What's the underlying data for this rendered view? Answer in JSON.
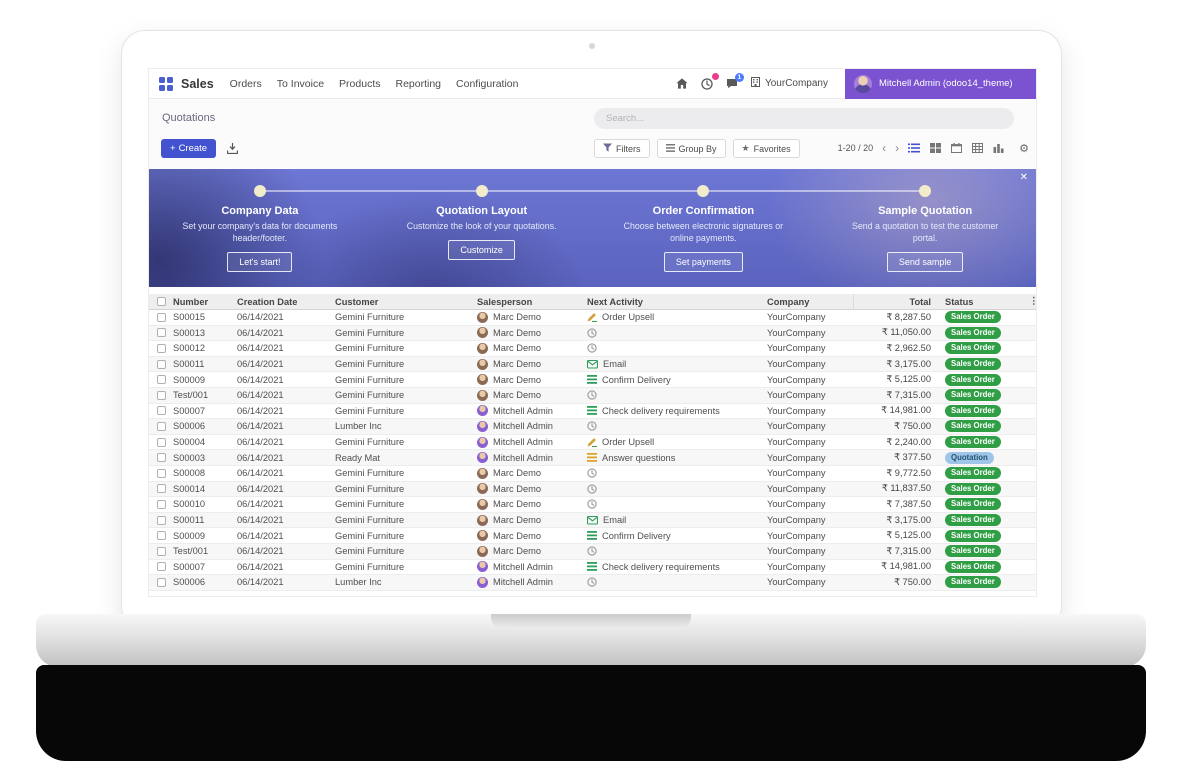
{
  "colors": {
    "accent": "#4353cf",
    "apps_icon": "#4a5fd0",
    "user_block_bg": "#7b52d0",
    "banner_top": "#6d77d4",
    "banner_bottom": "#5a63bd",
    "dot": "#f2ecca",
    "status_sales_order_bg": "#2f9e44",
    "status_sales_order_text": "#ffffff",
    "status_quotation_bg": "#9fc5e8",
    "status_quotation_text": "#23536f",
    "message_badge_bg": "#4d7cfe",
    "activity_badge_bg": "#e83e8c"
  },
  "icons": {
    "close": "✕",
    "star": "★",
    "plus": "+",
    "pager_prev": "‹",
    "pager_next": "›",
    "dots_vertical": "⋮",
    "gear": "⚙"
  },
  "navbar": {
    "app_name": "Sales",
    "menu": [
      "Orders",
      "To Invoice",
      "Products",
      "Reporting",
      "Configuration"
    ],
    "company": "YourCompany",
    "user": "Mitchell Admin (odoo14_theme)",
    "message_badge": "1"
  },
  "control_panel": {
    "breadcrumb": "Quotations",
    "search_placeholder": "Search...",
    "create_label": "Create",
    "filters_label": "Filters",
    "group_by_label": "Group By",
    "favorites_label": "Favorites",
    "pager": "1-20 / 20"
  },
  "onboarding": {
    "steps": [
      {
        "title": "Company Data",
        "description": "Set your company's data for documents header/footer.",
        "button": "Let's start!"
      },
      {
        "title": "Quotation Layout",
        "description": "Customize the look of your quotations.",
        "button": "Customize"
      },
      {
        "title": "Order Confirmation",
        "description": "Choose between electronic signatures or online payments.",
        "button": "Set payments"
      },
      {
        "title": "Sample Quotation",
        "description": "Send a quotation to test the customer portal.",
        "button": "Send sample"
      }
    ]
  },
  "table": {
    "columns": [
      "Number",
      "Creation Date",
      "Customer",
      "Salesperson",
      "Next Activity",
      "Company",
      "Total",
      "Status"
    ],
    "salesperson_colors": {
      "Marc Demo": "#8a6a55",
      "Mitchell Admin": "#8a5fd0"
    },
    "rows": [
      {
        "number": "S00015",
        "date": "06/14/2021",
        "customer": "Gemini Furniture",
        "salesperson": "Marc Demo",
        "activity_icon": "upsell",
        "activity": "Order Upsell",
        "company": "YourCompany",
        "total": "₹ 8,287.50",
        "status": "Sales Order"
      },
      {
        "number": "S00013",
        "date": "06/14/2021",
        "customer": "Gemini Furniture",
        "salesperson": "Marc Demo",
        "activity_icon": "clock",
        "activity": "",
        "company": "YourCompany",
        "total": "₹ 11,050.00",
        "status": "Sales Order"
      },
      {
        "number": "S00012",
        "date": "06/14/2021",
        "customer": "Gemini Furniture",
        "salesperson": "Marc Demo",
        "activity_icon": "clock",
        "activity": "",
        "company": "YourCompany",
        "total": "₹ 2,962.50",
        "status": "Sales Order"
      },
      {
        "number": "S00011",
        "date": "06/14/2021",
        "customer": "Gemini Furniture",
        "salesperson": "Marc Demo",
        "activity_icon": "email",
        "activity": "Email",
        "company": "YourCompany",
        "total": "₹ 3,175.00",
        "status": "Sales Order"
      },
      {
        "number": "S00009",
        "date": "06/14/2021",
        "customer": "Gemini Furniture",
        "salesperson": "Marc Demo",
        "activity_icon": "tasks",
        "activity": "Confirm Delivery",
        "company": "YourCompany",
        "total": "₹ 5,125.00",
        "status": "Sales Order"
      },
      {
        "number": "Test/001",
        "date": "06/14/2021",
        "customer": "Gemini Furniture",
        "salesperson": "Marc Demo",
        "activity_icon": "clock",
        "activity": "",
        "company": "YourCompany",
        "total": "₹ 7,315.00",
        "status": "Sales Order"
      },
      {
        "number": "S00007",
        "date": "06/14/2021",
        "customer": "Gemini Furniture",
        "salesperson": "Mitchell Admin",
        "activity_icon": "tasks",
        "activity": "Check delivery requirements",
        "company": "YourCompany",
        "total": "₹ 14,981.00",
        "status": "Sales Order"
      },
      {
        "number": "S00006",
        "date": "06/14/2021",
        "customer": "Lumber Inc",
        "salesperson": "Mitchell Admin",
        "activity_icon": "clock",
        "activity": "",
        "company": "YourCompany",
        "total": "₹ 750.00",
        "status": "Sales Order"
      },
      {
        "number": "S00004",
        "date": "06/14/2021",
        "customer": "Gemini Furniture",
        "salesperson": "Mitchell Admin",
        "activity_icon": "upsell",
        "activity": "Order Upsell",
        "company": "YourCompany",
        "total": "₹ 2,240.00",
        "status": "Sales Order"
      },
      {
        "number": "S00003",
        "date": "06/14/2021",
        "customer": "Ready Mat",
        "salesperson": "Mitchell Admin",
        "activity_icon": "tasks_orange",
        "activity": "Answer questions",
        "company": "YourCompany",
        "total": "₹ 377.50",
        "status": "Quotation"
      },
      {
        "number": "S00008",
        "date": "06/14/2021",
        "customer": "Gemini Furniture",
        "salesperson": "Marc Demo",
        "activity_icon": "clock",
        "activity": "",
        "company": "YourCompany",
        "total": "₹ 9,772.50",
        "status": "Sales Order"
      },
      {
        "number": "S00014",
        "date": "06/14/2021",
        "customer": "Gemini Furniture",
        "salesperson": "Marc Demo",
        "activity_icon": "clock",
        "activity": "",
        "company": "YourCompany",
        "total": "₹ 11,837.50",
        "status": "Sales Order"
      },
      {
        "number": "S00010",
        "date": "06/14/2021",
        "customer": "Gemini Furniture",
        "salesperson": "Marc Demo",
        "activity_icon": "clock",
        "activity": "",
        "company": "YourCompany",
        "total": "₹ 7,387.50",
        "status": "Sales Order"
      },
      {
        "number": "S00011",
        "date": "06/14/2021",
        "customer": "Gemini Furniture",
        "salesperson": "Marc Demo",
        "activity_icon": "email",
        "activity": "Email",
        "company": "YourCompany",
        "total": "₹ 3,175.00",
        "status": "Sales Order"
      },
      {
        "number": "S00009",
        "date": "06/14/2021",
        "customer": "Gemini Furniture",
        "salesperson": "Marc Demo",
        "activity_icon": "tasks",
        "activity": "Confirm Delivery",
        "company": "YourCompany",
        "total": "₹ 5,125.00",
        "status": "Sales Order"
      },
      {
        "number": "Test/001",
        "date": "06/14/2021",
        "customer": "Gemini Furniture",
        "salesperson": "Marc Demo",
        "activity_icon": "clock",
        "activity": "",
        "company": "YourCompany",
        "total": "₹ 7,315.00",
        "status": "Sales Order"
      },
      {
        "number": "S00007",
        "date": "06/14/2021",
        "customer": "Gemini Furniture",
        "salesperson": "Mitchell Admin",
        "activity_icon": "tasks",
        "activity": "Check delivery requirements",
        "company": "YourCompany",
        "total": "₹ 14,981.00",
        "status": "Sales Order"
      },
      {
        "number": "S00006",
        "date": "06/14/2021",
        "customer": "Lumber Inc",
        "salesperson": "Mitchell Admin",
        "activity_icon": "clock",
        "activity": "",
        "company": "YourCompany",
        "total": "₹ 750.00",
        "status": "Sales Order"
      }
    ]
  }
}
